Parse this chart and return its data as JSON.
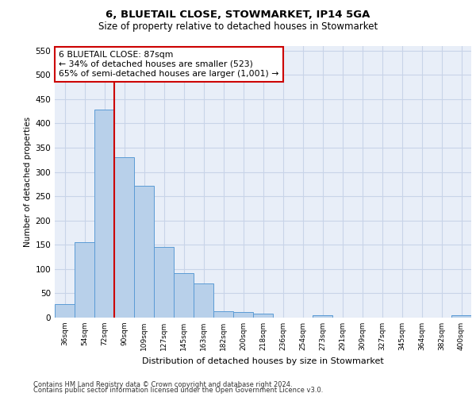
{
  "title1": "6, BLUETAIL CLOSE, STOWMARKET, IP14 5GA",
  "title2": "Size of property relative to detached houses in Stowmarket",
  "xlabel": "Distribution of detached houses by size in Stowmarket",
  "ylabel": "Number of detached properties",
  "footer1": "Contains HM Land Registry data © Crown copyright and database right 2024.",
  "footer2": "Contains public sector information licensed under the Open Government Licence v3.0.",
  "categories": [
    "36sqm",
    "54sqm",
    "72sqm",
    "90sqm",
    "109sqm",
    "127sqm",
    "145sqm",
    "163sqm",
    "182sqm",
    "200sqm",
    "218sqm",
    "236sqm",
    "254sqm",
    "273sqm",
    "291sqm",
    "309sqm",
    "327sqm",
    "345sqm",
    "364sqm",
    "382sqm",
    "400sqm"
  ],
  "values": [
    28,
    155,
    428,
    330,
    272,
    145,
    92,
    70,
    13,
    11,
    8,
    0,
    0,
    5,
    0,
    0,
    0,
    0,
    0,
    0,
    5
  ],
  "bar_color": "#b8d0ea",
  "bar_edge_color": "#5b9bd5",
  "grid_color": "#c8d4e8",
  "bg_color": "#e8eef8",
  "vline_color": "#cc0000",
  "vline_x_index": 2,
  "annotation_text": "6 BLUETAIL CLOSE: 87sqm\n← 34% of detached houses are smaller (523)\n65% of semi-detached houses are larger (1,001) →",
  "annotation_box_color": "#ffffff",
  "annotation_box_edge": "#cc0000",
  "ylim": [
    0,
    560
  ],
  "yticks": [
    0,
    50,
    100,
    150,
    200,
    250,
    300,
    350,
    400,
    450,
    500,
    550
  ]
}
